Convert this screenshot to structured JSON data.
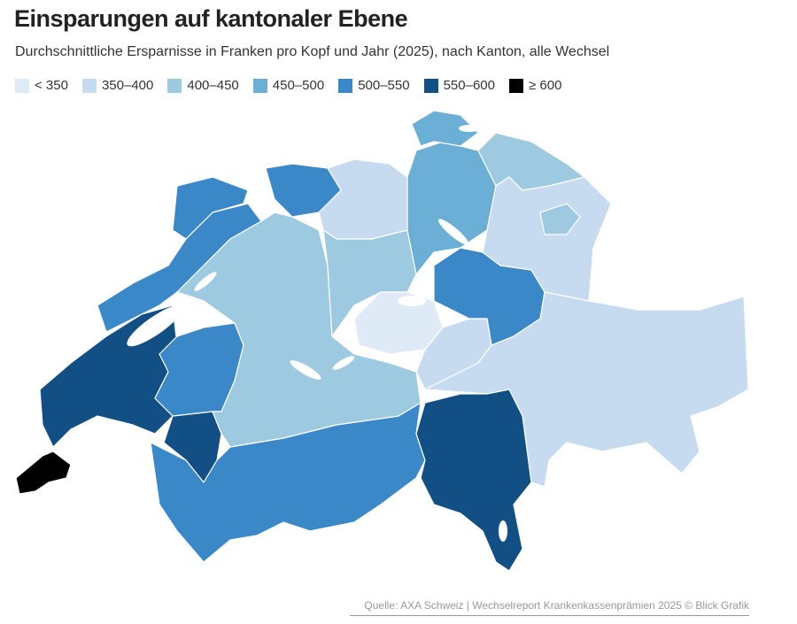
{
  "header": {
    "title": "Einsparungen auf kantonaler Ebene",
    "subtitle": "Durchschnittliche Ersparnisse in Franken pro Kopf und Jahr (2025), nach Kanton, alle Wechsel"
  },
  "legend": {
    "items": [
      {
        "label": "< 350",
        "color": "#deebf7"
      },
      {
        "label": "350–400",
        "color": "#c6dbef"
      },
      {
        "label": "400–450",
        "color": "#9ecae1"
      },
      {
        "label": "450–500",
        "color": "#6baed6"
      },
      {
        "label": "500–550",
        "color": "#3a88c8"
      },
      {
        "label": "550–600",
        "color": "#124f84"
      },
      {
        "label": "≥ 600",
        "color": "#000000"
      }
    ]
  },
  "footer": {
    "source": "Quelle: AXA Schweiz | Wechselreport Krankenkassenprämien 2025 © Blick Grafik"
  }
}
